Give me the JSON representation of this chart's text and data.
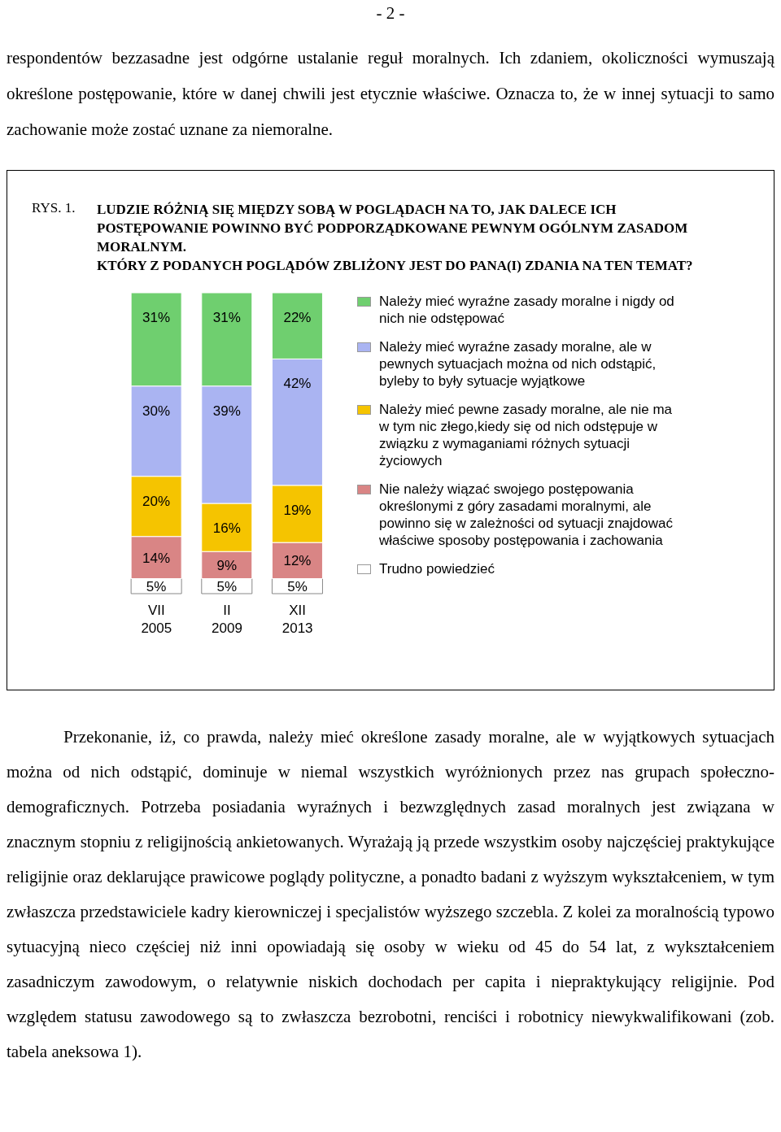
{
  "chart_data": {
    "type": "bar",
    "stacked": true,
    "legend": "right",
    "title": "LUDZIE RÓŻNIĄ SIĘ MIĘDZY SOBĄ W POGLĄDACH NA TO, JAK DALECE ICH POSTĘPOWANIE POWINNO BYĆ PODPORZĄDKOWANE PEWNYM OGÓLNYM ZASADOM MORALNYM.",
    "subtitle": "KTÓRY Z PODANYCH POGLĄDÓW ZBLIŻONY JEST DO PANA(I) ZDANIA NA TEN TEMAT?",
    "annotations": [
      "- 2 -",
      "respondentów bezzasadne jest odgórne ustalanie reguł moralnych. Ich zdaniem, okoliczności wymuszają określone postępowanie, które w danej chwili jest etycznie właściwe. Oznacza to, że w innej sytuacji to samo zachowanie może zostać uznane za niemoralne.",
      "RYS. 1.",
      "Przekonanie, iż, co prawda, należy mieć określone zasady moralne, ale w wyjątkowych sytuacjach można od nich odstąpić, dominuje w niemal wszystkich wyróżnionych przez nas grupach społeczno-demograficznych. Potrzeba posiadania wyraźnych i bezwzględnych zasad moralnych jest związana w znacznym stopniu z religijnością ankietowanych. Wyrażają ją przede wszystkim osoby najczęściej praktykujące religijnie oraz deklarujące prawicowe poglądy polityczne, a ponadto badani z wyższym wykształceniem, w tym zwłaszcza przedstawiciele kadry kierowniczej i specjalistów wyższego szczebla. Z kolei za moralnością typowo sytuacyjną nieco częściej niż inni opowiadają się osoby w wieku od 45 do 54 lat, z wykształceniem zasadniczym zawodowym, o relatywnie niskich dochodach per capita i niepraktykujący religijnie. Pod względem statusu zawodowego są to zwłaszcza bezrobotni, renciści i robotnicy niewykwalifikowani (zob. tabela aneksowa 1)."
    ],
    "categories": [
      "VII 2005",
      "II 2009",
      "XII 2013"
    ],
    "series": [
      {
        "name": "Trudno powiedzieć",
        "color": "#ffffff",
        "values": [
          5,
          5,
          5
        ],
        "value_labels": [
          "5%",
          "5%",
          "5%"
        ]
      },
      {
        "name": "Nie należy wiązać swojego postępowania określonymi z góry zasadami moralnymi, ale powinno się w zależności od sytuacji znajdować właściwe sposoby postępowania i zachowania",
        "color": "#d98585",
        "values": [
          14,
          9,
          12
        ],
        "value_labels": [
          "14%",
          "9%",
          "12%"
        ]
      },
      {
        "name": "Należy mieć pewne zasady moralne, ale nie ma w tym nic złego,kiedy się od nich odstępuje w związku z wymaganiami różnych sytuacji życiowych",
        "color": "#f5c400",
        "values": [
          20,
          16,
          19
        ],
        "value_labels": [
          "20%",
          "16%",
          "19%"
        ]
      },
      {
        "name": "Należy mieć wyraźne zasady moralne, ale w pewnych sytuacjach można od nich odstąpić, byleby to były sytuacje wyjątkowe",
        "color": "#aab4f2",
        "values": [
          30,
          39,
          42
        ],
        "value_labels": [
          "30%",
          "39%",
          "42%"
        ]
      },
      {
        "name": "Należy mieć wyraźne zasady moralne i nigdy od nich nie odstępować",
        "color": "#6fcf6f",
        "values": [
          31,
          31,
          22
        ],
        "value_labels": [
          "31%",
          "31%",
          "22%"
        ]
      }
    ]
  }
}
